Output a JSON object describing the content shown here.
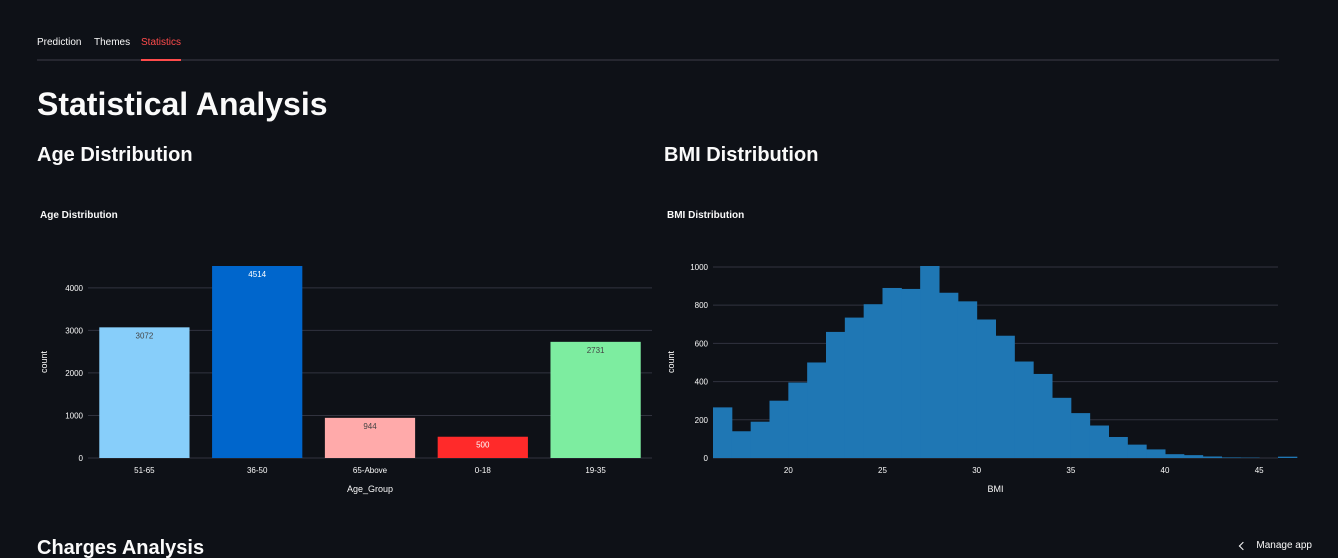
{
  "tabs": [
    {
      "label": "Prediction",
      "active": false
    },
    {
      "label": "Themes",
      "active": false
    },
    {
      "label": "Statistics",
      "active": true
    }
  ],
  "colors": {
    "background": "#0e1117",
    "accent": "#ff4b4b",
    "bmi_bars": "#1f77b4"
  },
  "page_title": "Statistical Analysis",
  "age_section": {
    "heading": "Age Distribution"
  },
  "bmi_section": {
    "heading": "BMI Distribution"
  },
  "charges_section": {
    "heading": "Charges Analysis"
  },
  "manage_app": {
    "label": "Manage app",
    "icon": "chevron-left-icon"
  },
  "chart_data": [
    {
      "type": "bar",
      "title": "Age Distribution",
      "xlabel": "Age_Group",
      "ylabel": "count",
      "categories": [
        "51-65",
        "36-50",
        "65-Above",
        "0-18",
        "19-35"
      ],
      "values": [
        3072,
        4514,
        944,
        500,
        2731
      ],
      "colors": [
        "#87cefa",
        "#0066cc",
        "#ffaaaa",
        "#ff2a2a",
        "#7deda0"
      ],
      "label_colors": [
        "#444444",
        "#ffffff",
        "#444444",
        "#ffffff",
        "#444444"
      ],
      "yticks": [
        0,
        1000,
        2000,
        3000,
        4000
      ],
      "ylim": [
        0,
        4514
      ],
      "grid": true,
      "legend": "none"
    },
    {
      "type": "bar",
      "title": "BMI Distribution",
      "xlabel": "BMI",
      "ylabel": "count",
      "bin_start": 16,
      "bin_width": 1,
      "values": [
        265,
        140,
        190,
        300,
        395,
        500,
        660,
        735,
        805,
        890,
        885,
        1005,
        865,
        820,
        725,
        640,
        505,
        440,
        315,
        235,
        170,
        110,
        70,
        45,
        20,
        15,
        8,
        3,
        2,
        0,
        7
      ],
      "xticks": [
        20,
        25,
        30,
        35,
        40,
        45
      ],
      "yticks": [
        0,
        200,
        400,
        600,
        800,
        1000
      ],
      "xlim": [
        16,
        46
      ],
      "ylim": [
        0,
        1005
      ],
      "grid": true,
      "legend": "none"
    }
  ]
}
